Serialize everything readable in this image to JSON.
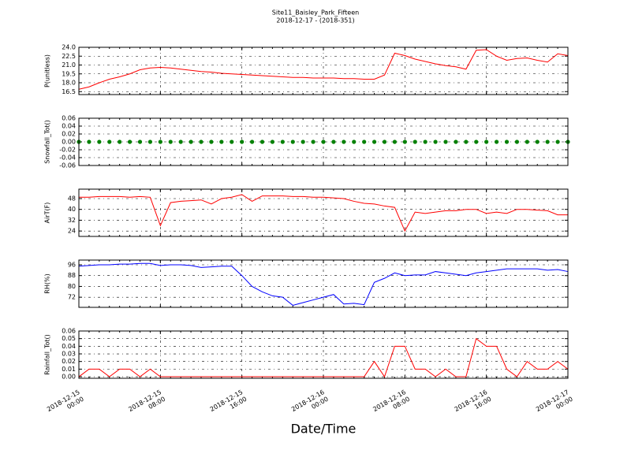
{
  "figure": {
    "title": "Site11_Baisley_Park_Fifteen",
    "subtitle": "2018-12-17 - (2018-351)",
    "x_label": "Date/Time",
    "xlim": [
      "2018-12-15 00:00",
      "2018-12-17 00:00"
    ],
    "xticks": [
      {
        "value": "2018-12-15 00:00",
        "label": [
          "2018-12-15",
          "00:00"
        ]
      },
      {
        "value": "2018-12-15 08:00",
        "label": [
          "2018-12-15",
          "08:00"
        ]
      },
      {
        "value": "2018-12-15 16:00",
        "label": [
          "2018-12-15",
          "16:00"
        ]
      },
      {
        "value": "2018-12-16 00:00",
        "label": [
          "2018-12-16",
          "00:00"
        ]
      },
      {
        "value": "2018-12-16 08:00",
        "label": [
          "2018-12-16",
          "08:00"
        ]
      },
      {
        "value": "2018-12-16 16:00",
        "label": [
          "2018-12-16",
          "16:00"
        ]
      },
      {
        "value": "2018-12-17 00:00",
        "label": [
          "2018-12-17",
          "00:00"
        ]
      }
    ],
    "x": [
      "2018-12-15 00:00",
      "2018-12-15 01:00",
      "2018-12-15 02:00",
      "2018-12-15 03:00",
      "2018-12-15 04:00",
      "2018-12-15 05:00",
      "2018-12-15 06:00",
      "2018-12-15 07:00",
      "2018-12-15 08:00",
      "2018-12-15 09:00",
      "2018-12-15 10:00",
      "2018-12-15 11:00",
      "2018-12-15 12:00",
      "2018-12-15 13:00",
      "2018-12-15 14:00",
      "2018-12-15 15:00",
      "2018-12-15 16:00",
      "2018-12-15 17:00",
      "2018-12-15 18:00",
      "2018-12-15 19:00",
      "2018-12-15 20:00",
      "2018-12-15 21:00",
      "2018-12-15 22:00",
      "2018-12-15 23:00",
      "2018-12-16 00:00",
      "2018-12-16 01:00",
      "2018-12-16 02:00",
      "2018-12-16 03:00",
      "2018-12-16 04:00",
      "2018-12-16 05:00",
      "2018-12-16 06:00",
      "2018-12-16 07:00",
      "2018-12-16 08:00",
      "2018-12-16 09:00",
      "2018-12-16 10:00",
      "2018-12-16 11:00",
      "2018-12-16 12:00",
      "2018-12-16 13:00",
      "2018-12-16 14:00",
      "2018-12-16 15:00",
      "2018-12-16 16:00",
      "2018-12-16 17:00",
      "2018-12-16 18:00",
      "2018-12-16 19:00",
      "2018-12-16 20:00",
      "2018-12-16 21:00",
      "2018-12-16 22:00",
      "2018-12-16 23:00",
      "2018-12-17 00:00"
    ]
  },
  "chart_data": [
    {
      "type": "line",
      "y_label": "P(unitless)",
      "ylim": [
        16,
        24
      ],
      "grid": true,
      "yticks": [
        16.5,
        {
          "value": 18,
          "label": "18.0"
        },
        19.5,
        {
          "value": 21,
          "label": "21.0"
        },
        22.5,
        {
          "value": 24,
          "label": "24.0"
        }
      ],
      "series": [
        {
          "color": "#ff0000",
          "values": [
            16.9,
            17.3,
            18.0,
            18.6,
            19.0,
            19.5,
            20.2,
            20.5,
            20.6,
            20.5,
            20.3,
            20.1,
            19.9,
            19.8,
            19.6,
            19.5,
            19.4,
            19.3,
            19.2,
            19.1,
            19.0,
            18.9,
            18.9,
            18.8,
            18.8,
            18.8,
            18.7,
            18.7,
            18.6,
            18.6,
            19.3,
            23.0,
            22.6,
            22.0,
            21.6,
            21.2,
            20.9,
            20.7,
            20.3,
            23.5,
            23.6,
            22.5,
            21.8,
            22.1,
            22.2,
            21.8,
            21.5,
            22.9,
            22.6
          ]
        }
      ]
    },
    {
      "type": "scatter",
      "y_label": "Snowfall_Tot()",
      "ylim": [
        -0.06,
        0.06
      ],
      "grid": true,
      "yticks": [
        {
          "value": -0.06,
          "label": "-0.06"
        },
        {
          "value": -0.04,
          "label": "-0.04"
        },
        {
          "value": -0.02,
          "label": "-0.02"
        },
        {
          "value": 0,
          "label": "0.00"
        },
        {
          "value": 0.02,
          "label": "0.02"
        },
        {
          "value": 0.04,
          "label": "0.04"
        },
        {
          "value": 0.06,
          "label": "0.06"
        }
      ],
      "series": [
        {
          "color": "#008000",
          "values": [
            0,
            0,
            0,
            0,
            0,
            0,
            0,
            0,
            0,
            0,
            0,
            0,
            0,
            0,
            0,
            0,
            0,
            0,
            0,
            0,
            0,
            0,
            0,
            0,
            0,
            0,
            0,
            0,
            0,
            0,
            0,
            0,
            0,
            0,
            0,
            0,
            0,
            0,
            0,
            0,
            0,
            0,
            0,
            0,
            0,
            0,
            0,
            0,
            0
          ]
        }
      ]
    },
    {
      "type": "line",
      "y_label": "AirT(F)",
      "ylim": [
        20,
        55
      ],
      "grid": true,
      "yticks": [
        24,
        32,
        40,
        48
      ],
      "series": [
        {
          "color": "#ff0000",
          "values": [
            49,
            49,
            49.5,
            49.5,
            49.5,
            49,
            49.5,
            49,
            28,
            45,
            46,
            46.5,
            47,
            44,
            48,
            49,
            51,
            46,
            50,
            50,
            50,
            49.5,
            49.5,
            49,
            49,
            48.5,
            48,
            46,
            44.5,
            44,
            42.5,
            41.5,
            24,
            38,
            37,
            38,
            39,
            39,
            40,
            40,
            37,
            38,
            37,
            40,
            40,
            39.5,
            39,
            36,
            36
          ]
        }
      ]
    },
    {
      "type": "line",
      "y_label": "RH(%)",
      "ylim": [
        64.5,
        99.5
      ],
      "grid": true,
      "yticks": [
        72,
        80,
        88,
        96
      ],
      "series": [
        {
          "color": "#0000ff",
          "values": [
            95,
            95.5,
            96,
            96,
            96.5,
            96.5,
            97,
            97,
            95.5,
            96,
            96,
            95.5,
            94,
            94.5,
            95,
            95,
            88,
            80,
            76,
            73,
            72,
            66,
            68,
            70,
            72,
            74,
            67,
            67.5,
            66.5,
            83,
            86,
            90,
            88,
            88.5,
            88.5,
            91,
            90,
            89,
            88,
            90,
            91,
            92,
            93,
            93,
            93,
            93,
            92,
            92.5,
            91
          ]
        }
      ]
    },
    {
      "type": "line",
      "y_label": "Rainfall_Tot()",
      "ylim": [
        -0.002,
        0.06
      ],
      "grid": true,
      "yticks": [
        {
          "value": 0,
          "label": "0.00"
        },
        0.01,
        0.02,
        0.03,
        0.04,
        0.05,
        0.06
      ],
      "series": [
        {
          "color": "#ff0000",
          "values": [
            0,
            0.01,
            0.01,
            0,
            0.01,
            0.01,
            0,
            0.01,
            0,
            0,
            0,
            0,
            0,
            0,
            0,
            0,
            0,
            0,
            0,
            0,
            0,
            0,
            0,
            0,
            0,
            0,
            0,
            0,
            0,
            0.02,
            0,
            0.04,
            0.04,
            0.01,
            0.01,
            0,
            0.01,
            0,
            0,
            0.05,
            0.04,
            0.04,
            0.01,
            0,
            0.02,
            0.01,
            0.01,
            0.02,
            0.01
          ]
        }
      ]
    }
  ]
}
